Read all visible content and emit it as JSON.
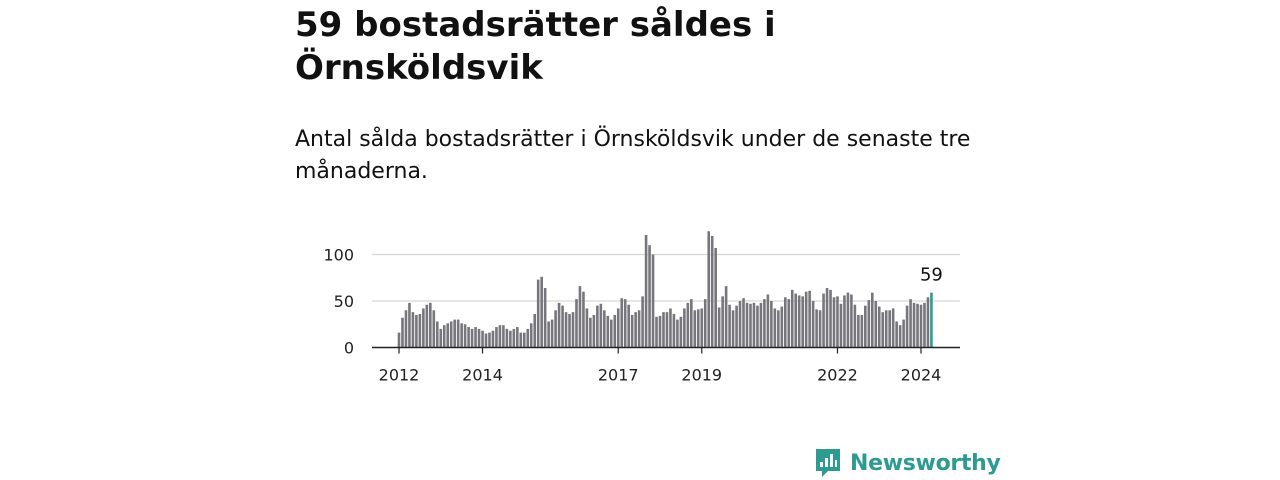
{
  "header": {
    "title": "59 bostadsrätter såldes i Örnsköldsvik",
    "subtitle": "Antal sålda bostadsrätter i Örnsköldsvik under de senaste tre månaderna."
  },
  "brand": {
    "name": "Newsworthy",
    "color": "#2e9b93",
    "icon": "newsworthy-logo-icon"
  },
  "chart_data": {
    "type": "bar",
    "title": "",
    "xlabel": "",
    "ylabel": "",
    "ylim": [
      0,
      125
    ],
    "yticks": [
      0,
      50,
      100
    ],
    "x_tick_labels": [
      {
        "label": "2012",
        "index": 0
      },
      {
        "label": "2014",
        "index": 24
      },
      {
        "label": "2017",
        "index": 63
      },
      {
        "label": "2019",
        "index": 87
      },
      {
        "label": "2022",
        "index": 126
      },
      {
        "label": "2024",
        "index": 150
      }
    ],
    "grid": true,
    "bar_color": "#77767c",
    "highlight_color": "#2e9b93",
    "highlight_label": "59",
    "series": [
      {
        "values": [
          16,
          32,
          40,
          48,
          38,
          35,
          36,
          42,
          46,
          48,
          40,
          28,
          20,
          24,
          26,
          28,
          30,
          30,
          26,
          25,
          22,
          20,
          22,
          20,
          18,
          15,
          16,
          18,
          22,
          24,
          24,
          20,
          18,
          20,
          22,
          16,
          16,
          20,
          26,
          36,
          73,
          76,
          64,
          28,
          30,
          40,
          48,
          45,
          38,
          36,
          38,
          52,
          66,
          60,
          42,
          32,
          35,
          45,
          47,
          40,
          34,
          30,
          35,
          42,
          53,
          52,
          46,
          35,
          38,
          40,
          55,
          121,
          110,
          100,
          33,
          34,
          38,
          38,
          42,
          36,
          30,
          33,
          42,
          48,
          52,
          40,
          41,
          42,
          52,
          125,
          120,
          107,
          43,
          55,
          66,
          46,
          40,
          45,
          50,
          53,
          48,
          47,
          48,
          45,
          48,
          52,
          57,
          50,
          42,
          40,
          44,
          54,
          52,
          62,
          58,
          56,
          55,
          60,
          61,
          50,
          41,
          40,
          58,
          64,
          62,
          54,
          55,
          47,
          56,
          59,
          57,
          46,
          35,
          35,
          45,
          51,
          59,
          50,
          44,
          38,
          40,
          40,
          42,
          28,
          24,
          30,
          45,
          52,
          48,
          47,
          46,
          48,
          54,
          59
        ]
      }
    ]
  }
}
